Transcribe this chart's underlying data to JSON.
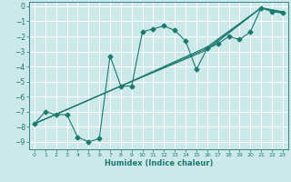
{
  "bg_color": "#cce8eb",
  "grid_color": "#ffffff",
  "line_color": "#1a7a6e",
  "xlabel": "Humidex (Indice chaleur)",
  "xlim": [
    -0.5,
    23.5
  ],
  "ylim": [
    -9.5,
    0.3
  ],
  "xticks": [
    0,
    1,
    2,
    3,
    4,
    5,
    6,
    7,
    8,
    9,
    10,
    11,
    12,
    13,
    14,
    15,
    16,
    17,
    18,
    19,
    20,
    21,
    22,
    23
  ],
  "yticks": [
    0,
    -1,
    -2,
    -3,
    -4,
    -5,
    -6,
    -7,
    -8,
    -9
  ],
  "main_series": {
    "x": [
      0,
      1,
      2,
      3,
      4,
      5,
      6,
      7,
      8,
      9,
      10,
      11,
      12,
      13,
      14,
      15,
      16,
      17,
      18,
      19,
      20,
      21,
      22,
      23
    ],
    "y": [
      -7.8,
      -7.0,
      -7.2,
      -7.2,
      -8.7,
      -9.0,
      -8.8,
      -3.3,
      -5.3,
      -5.3,
      -1.7,
      -1.5,
      -1.3,
      -1.6,
      -2.3,
      -4.2,
      -2.8,
      -2.5,
      -2.0,
      -2.2,
      -1.7,
      -0.1,
      -0.35,
      -0.45
    ]
  },
  "smooth_lines": [
    {
      "x": [
        0,
        8,
        16,
        21,
        23
      ],
      "y": [
        -7.8,
        -5.3,
        -2.8,
        -0.1,
        -0.35
      ]
    },
    {
      "x": [
        0,
        8,
        16,
        21,
        23
      ],
      "y": [
        -7.8,
        -5.3,
        -2.9,
        -0.1,
        -0.4
      ]
    },
    {
      "x": [
        0,
        8,
        16,
        21,
        23
      ],
      "y": [
        -7.8,
        -5.3,
        -2.7,
        -0.1,
        -0.45
      ]
    }
  ]
}
